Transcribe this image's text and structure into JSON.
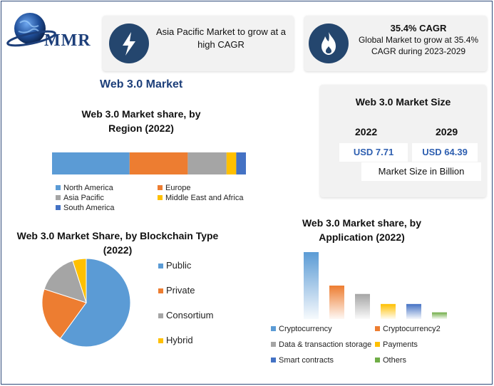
{
  "brand": {
    "logo_text": "MMR"
  },
  "highlights": [
    {
      "icon": "lightning-icon",
      "text": "Asia Pacific Market to grow at a high CAGR"
    },
    {
      "icon": "flame-icon",
      "heading": "35.4% CAGR",
      "text": "Global Market to grow at 35.4% CAGR during 2023-2029"
    }
  ],
  "page_title": "Web 3.0 Market",
  "market_size": {
    "title": "Web 3.0 Market Size",
    "years": [
      "2022",
      "2029"
    ],
    "values": [
      "USD 7.71",
      "USD 64.39"
    ],
    "unit_label": "Market Size in Billion"
  },
  "chart_data": [
    {
      "type": "bar",
      "orientation": "horizontal-stacked",
      "title": "Web 3.0 Market share, by Region (2022)",
      "categories": [
        "North America",
        "Europe",
        "Asia Pacific",
        "Middle East and Africa",
        "South America"
      ],
      "values": [
        40,
        30,
        20,
        5,
        5
      ],
      "colors": [
        "#5b9bd5",
        "#ed7d31",
        "#a5a5a5",
        "#ffc000",
        "#4472c4"
      ],
      "legend": "bottom"
    },
    {
      "type": "pie",
      "title": "Web 3.0 Market Share, by Blockchain Type  (2022)",
      "categories": [
        "Public",
        "Private",
        "Consortium",
        "Hybrid"
      ],
      "values": [
        60,
        20,
        15,
        5
      ],
      "colors": [
        "#5b9bd5",
        "#ed7d31",
        "#a5a5a5",
        "#ffc000"
      ],
      "legend": "right"
    },
    {
      "type": "bar",
      "title": "Web 3.0 Market share, by Application (2022)",
      "categories": [
        "Cryptocurrency",
        "Cryptocurrency2",
        "Data & transaction storage",
        "Payments",
        "Smart contracts",
        "Others"
      ],
      "values": [
        40,
        20,
        15,
        9,
        9,
        4
      ],
      "colors": [
        "#5b9bd5",
        "#ed7d31",
        "#a5a5a5",
        "#ffc000",
        "#4472c4",
        "#70ad47"
      ],
      "legend": "bottom"
    }
  ]
}
